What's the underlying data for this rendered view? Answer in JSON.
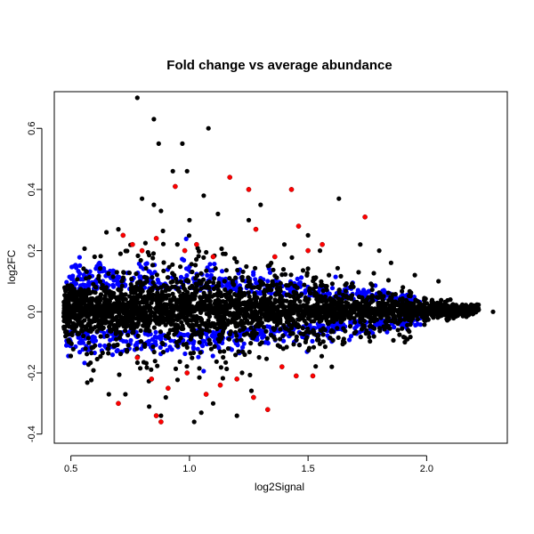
{
  "chart_data": {
    "type": "scatter",
    "title": "Fold change vs average abundance",
    "xlabel": "log2Signal",
    "ylabel": "log2FC",
    "xlim": [
      0.43,
      2.34
    ],
    "ylim": [
      -0.43,
      0.72
    ],
    "xticks": [
      0.5,
      1.0,
      1.5,
      2.0
    ],
    "xtick_labels": [
      "0.5",
      "1.0",
      "1.5",
      "2.0"
    ],
    "yticks": [
      -0.4,
      -0.2,
      0.0,
      0.2,
      0.4,
      0.6
    ],
    "ytick_labels": [
      "-0.4",
      "-0.2",
      "0.0",
      "0.2",
      "0.4",
      "0.6"
    ],
    "grid": false,
    "legend": "none",
    "colors": {
      "background": "#000000",
      "moderate": "#0000ff",
      "significant": "#ff0000"
    },
    "series": [
      {
        "color": "#000000",
        "x": [
          0.78,
          0.85,
          0.87,
          0.97,
          1.08,
          0.93,
          0.99,
          0.8,
          0.85,
          0.88,
          1.0,
          1.06,
          1.12,
          1.3,
          1.25,
          1.63,
          1.72,
          1.5,
          1.8,
          1.85,
          1.95,
          2.05,
          0.7,
          0.65,
          0.6,
          1.4,
          1.55,
          1.9,
          2.1,
          2.2,
          2.28,
          0.73,
          0.83,
          0.88,
          1.02,
          1.05,
          1.1,
          0.9,
          1.2,
          1.6,
          0.66
        ],
        "y": [
          0.7,
          0.63,
          0.55,
          0.55,
          0.6,
          0.46,
          0.46,
          0.37,
          0.35,
          0.33,
          0.3,
          0.38,
          0.32,
          0.35,
          0.3,
          0.37,
          0.22,
          0.25,
          0.2,
          0.16,
          0.12,
          0.1,
          0.27,
          0.26,
          0.18,
          0.22,
          0.2,
          0.08,
          0.04,
          0.02,
          0.0,
          -0.27,
          -0.31,
          -0.34,
          -0.36,
          -0.33,
          -0.3,
          -0.28,
          -0.34,
          -0.18,
          -0.27
        ]
      },
      {
        "color": "#ff0000",
        "x": [
          0.72,
          0.76,
          0.8,
          0.86,
          0.94,
          0.98,
          1.03,
          1.1,
          1.17,
          1.25,
          1.28,
          1.36,
          1.43,
          1.46,
          1.5,
          1.56,
          1.74,
          0.78,
          0.84,
          0.91,
          0.99,
          1.07,
          1.13,
          1.2,
          1.27,
          1.33,
          1.39,
          1.45,
          1.52,
          0.7,
          0.86,
          0.88
        ],
        "y": [
          0.25,
          0.22,
          0.2,
          0.24,
          0.41,
          0.2,
          0.22,
          0.18,
          0.44,
          0.4,
          0.27,
          0.18,
          0.4,
          0.28,
          0.2,
          0.22,
          0.31,
          -0.15,
          -0.22,
          -0.25,
          -0.2,
          -0.27,
          -0.24,
          -0.22,
          -0.28,
          -0.32,
          -0.18,
          -0.21,
          -0.21,
          -0.3,
          -0.34,
          -0.36
        ]
      }
    ]
  }
}
